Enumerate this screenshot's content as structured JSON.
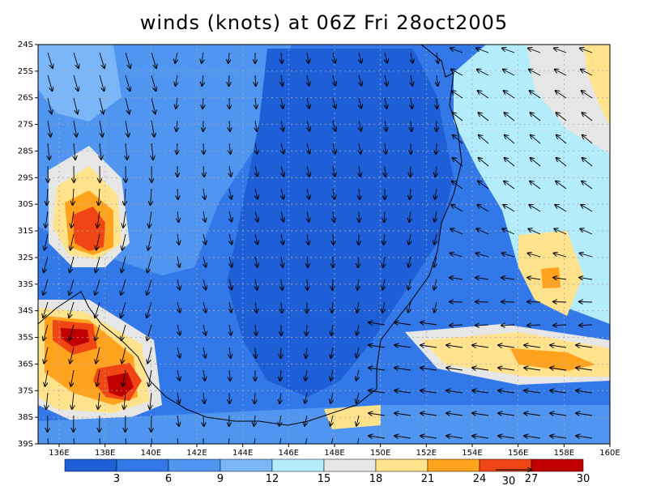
{
  "title": "winds (knots) at 06Z Fri 28oct2005",
  "lat_labels": [
    "24S",
    "25S",
    "26S",
    "27S",
    "28S",
    "29S",
    "30S",
    "31S",
    "32S",
    "33S",
    "34S",
    "35S",
    "36S",
    "37S",
    "38S",
    "39S"
  ],
  "lon_labels": [
    "136E",
    "138E",
    "140E",
    "142E",
    "144E",
    "146E",
    "148E",
    "150E",
    "152E",
    "154E",
    "156E",
    "158E",
    "160E"
  ],
  "colorbar": {
    "ticks": [
      "3",
      "6",
      "9",
      "12",
      "15",
      "18",
      "21",
      "24",
      "27",
      "30"
    ],
    "colors": [
      "#1e5fd8",
      "#3378e8",
      "#5096f0",
      "#7ab6f8",
      "#b4ecfc",
      "#e6e6e6",
      "#ffe38c",
      "#ffa31e",
      "#f04514",
      "#c00000"
    ]
  },
  "reference_vector": {
    "label": "30"
  },
  "background": {
    "base_color": "#3378e8"
  }
}
